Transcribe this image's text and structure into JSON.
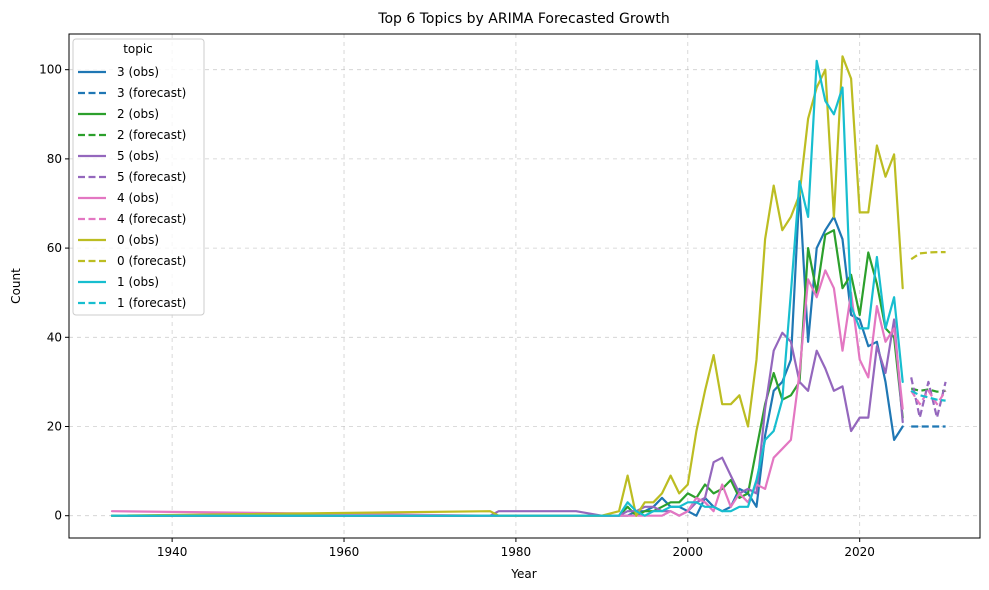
{
  "chart_data": {
    "type": "line",
    "title": "Top 6 Topics by ARIMA Forecasted Growth",
    "xlabel": "Year",
    "ylabel": "Count",
    "xlim": [
      1928,
      2034
    ],
    "ylim": [
      -5,
      108
    ],
    "x_ticks": [
      1940,
      1960,
      1980,
      2000,
      2020
    ],
    "y_ticks": [
      0,
      20,
      40,
      60,
      80,
      100
    ],
    "grid": true,
    "legend": {
      "title": "topic",
      "position": "upper-left"
    },
    "series": [
      {
        "name": "3 (obs)",
        "topic": "3",
        "kind": "obs",
        "color": "#1f77b4",
        "x": [
          1933,
          1992,
          1993,
          1994,
          1995,
          1996,
          1997,
          1998,
          1999,
          2000,
          2001,
          2002,
          2003,
          2004,
          2005,
          2006,
          2007,
          2008,
          2009,
          2010,
          2011,
          2012,
          2013,
          2014,
          2015,
          2016,
          2017,
          2018,
          2019,
          2020,
          2021,
          2022,
          2023,
          2024,
          2025
        ],
        "y": [
          0,
          0,
          0,
          1,
          1,
          2,
          4,
          2,
          2,
          1,
          0,
          4,
          2,
          1,
          2,
          6,
          5,
          2,
          18,
          28,
          30,
          35,
          73,
          39,
          60,
          64,
          67,
          62,
          45,
          44,
          38,
          39,
          30,
          17,
          20
        ]
      },
      {
        "name": "3 (forecast)",
        "topic": "3",
        "kind": "forecast",
        "color": "#1f77b4",
        "x": [
          2026,
          2027,
          2028,
          2029,
          2030
        ],
        "y": [
          20,
          20,
          20,
          20,
          20
        ]
      },
      {
        "name": "2 (obs)",
        "topic": "2",
        "kind": "obs",
        "color": "#2ca02c",
        "x": [
          1933,
          1992,
          1993,
          1994,
          1995,
          1996,
          1997,
          1998,
          1999,
          2000,
          2001,
          2002,
          2003,
          2004,
          2005,
          2006,
          2007,
          2008,
          2009,
          2010,
          2011,
          2012,
          2013,
          2014,
          2015,
          2016,
          2017,
          2018,
          2019,
          2020,
          2021,
          2022,
          2023,
          2024,
          2025
        ],
        "y": [
          0,
          0,
          2,
          0,
          1,
          1,
          2,
          3,
          3,
          5,
          4,
          7,
          5,
          6,
          8,
          4,
          5,
          15,
          25,
          32,
          26,
          27,
          30,
          60,
          50,
          63,
          64,
          51,
          54,
          45,
          59,
          52,
          42,
          40,
          22
        ]
      },
      {
        "name": "2 (forecast)",
        "topic": "2",
        "kind": "forecast",
        "color": "#2ca02c",
        "x": [
          2026,
          2027,
          2028,
          2029,
          2030
        ],
        "y": [
          28.5,
          28,
          28.3,
          27.8,
          28
        ]
      },
      {
        "name": "5 (obs)",
        "topic": "5",
        "kind": "obs",
        "color": "#9467bd",
        "x": [
          1933,
          1977,
          1978,
          1987,
          1990,
          1992,
          1993,
          1994,
          1995,
          1996,
          1997,
          1998,
          1999,
          2000,
          2001,
          2002,
          2003,
          2004,
          2005,
          2006,
          2007,
          2008,
          2009,
          2010,
          2011,
          2012,
          2013,
          2014,
          2015,
          2016,
          2017,
          2018,
          2019,
          2020,
          2021,
          2022,
          2023,
          2024,
          2025
        ],
        "y": [
          0,
          0,
          1,
          1,
          0,
          0,
          1,
          1,
          2,
          2,
          1,
          1,
          0,
          1,
          3,
          4,
          12,
          13,
          9,
          5,
          6,
          5,
          24,
          37,
          41,
          39,
          30,
          28,
          37,
          33,
          28,
          29,
          19,
          22,
          22,
          38,
          32,
          44,
          21
        ]
      },
      {
        "name": "5 (forecast)",
        "topic": "5",
        "kind": "forecast",
        "color": "#9467bd",
        "x": [
          2026,
          2027,
          2028,
          2029,
          2030
        ],
        "y": [
          31,
          22,
          30,
          22,
          30
        ]
      },
      {
        "name": "4 (obs)",
        "topic": "4",
        "kind": "obs",
        "color": "#e377c2",
        "x": [
          1933,
          1977,
          1978,
          1979,
          1987,
          1990,
          1992,
          1993,
          1994,
          1995,
          1996,
          1997,
          1998,
          1999,
          2000,
          2001,
          2002,
          2003,
          2004,
          2005,
          2006,
          2007,
          2008,
          2009,
          2010,
          2011,
          2012,
          2013,
          2014,
          2015,
          2016,
          2017,
          2018,
          2019,
          2020,
          2021,
          2022,
          2023,
          2024,
          2025
        ],
        "y": [
          1,
          0,
          0,
          0,
          0,
          0,
          0,
          0,
          0,
          0,
          0,
          0,
          1,
          0,
          1,
          4,
          3,
          1,
          7,
          2,
          5,
          3,
          7,
          6,
          13,
          15,
          17,
          32,
          53,
          49,
          55,
          51,
          37,
          50,
          35,
          31,
          47,
          39,
          42,
          24
        ]
      },
      {
        "name": "4 (forecast)",
        "topic": "4",
        "kind": "forecast",
        "color": "#e377c2",
        "x": [
          2026,
          2027,
          2028,
          2029,
          2030
        ],
        "y": [
          28,
          25,
          28,
          25,
          28
        ]
      },
      {
        "name": "0 (obs)",
        "topic": "0",
        "kind": "obs",
        "color": "#bcbd22",
        "x": [
          1933,
          1977,
          1978,
          1987,
          1990,
          1992,
          1993,
          1994,
          1995,
          1996,
          1997,
          1998,
          1999,
          2000,
          2001,
          2002,
          2003,
          2004,
          2005,
          2006,
          2007,
          2008,
          2009,
          2010,
          2011,
          2012,
          2013,
          2014,
          2015,
          2016,
          2017,
          2018,
          2019,
          2020,
          2021,
          2022,
          2023,
          2024,
          2025
        ],
        "y": [
          0,
          1,
          0,
          0,
          0,
          1,
          9,
          0,
          3,
          3,
          5,
          9,
          5,
          7,
          19,
          28,
          36,
          25,
          25,
          27,
          20,
          35,
          62,
          74,
          64,
          67,
          72,
          89,
          96,
          100,
          67,
          103,
          98,
          68,
          68,
          83,
          76,
          81,
          51
        ]
      },
      {
        "name": "0 (forecast)",
        "topic": "0",
        "kind": "forecast",
        "color": "#bcbd22",
        "x": [
          2026,
          2027,
          2028,
          2029,
          2030
        ],
        "y": [
          57.5,
          58.8,
          59,
          59.1,
          59.1
        ]
      },
      {
        "name": "1 (obs)",
        "topic": "1",
        "kind": "obs",
        "color": "#17becf",
        "x": [
          1933,
          1992,
          1993,
          1994,
          1995,
          1996,
          1997,
          1998,
          1999,
          2000,
          2001,
          2002,
          2003,
          2004,
          2005,
          2006,
          2007,
          2008,
          2009,
          2010,
          2011,
          2012,
          2013,
          2014,
          2015,
          2016,
          2017,
          2018,
          2019,
          2020,
          2021,
          2022,
          2023,
          2024,
          2025
        ],
        "y": [
          0,
          0,
          3,
          1,
          0,
          1,
          1,
          2,
          2,
          3,
          3,
          2,
          2,
          1,
          1,
          2,
          2,
          8,
          17,
          19,
          26,
          50,
          75,
          67,
          102,
          93,
          90,
          96,
          47,
          42,
          42,
          58,
          42,
          49,
          30
        ]
      },
      {
        "name": "1 (forecast)",
        "topic": "1",
        "kind": "forecast",
        "color": "#17becf",
        "x": [
          2026,
          2027,
          2028,
          2029,
          2030
        ],
        "y": [
          28,
          27,
          26.5,
          26,
          25.8
        ]
      }
    ]
  }
}
